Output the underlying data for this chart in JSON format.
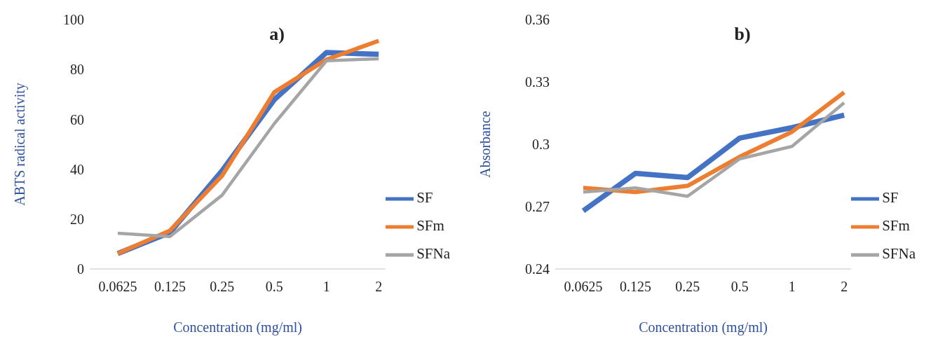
{
  "chart_data": [
    {
      "type": "line",
      "title": "a)",
      "xlabel": "Concentration (mg/ml)",
      "ylabel": "ABTS radical activity",
      "categories": [
        "0.0625",
        "0.125",
        "0.25",
        "0.5",
        "1",
        "2"
      ],
      "ylim": [
        0,
        100
      ],
      "yticks": [
        0,
        20,
        40,
        60,
        80,
        100
      ],
      "legend": "bottom right",
      "marker": "none",
      "series": [
        {
          "name": "SF",
          "color": "#4472c4",
          "values": [
            6.2,
            14.6,
            39.4,
            67.9,
            86.8,
            86.1
          ]
        },
        {
          "name": "SFm",
          "color": "#ed7d31",
          "values": [
            6.2,
            15.4,
            37.4,
            70.9,
            84,
            91.5
          ]
        },
        {
          "name": "SFNa",
          "color": "#a5a5a5",
          "values": [
            14.3,
            13,
            29.6,
            58.3,
            83.5,
            84.3
          ]
        }
      ]
    },
    {
      "type": "line",
      "title": "b)",
      "xlabel": "Concentration (mg/ml)",
      "ylabel": "Absorbance",
      "categories": [
        "0.0625",
        "0.125",
        "0.25",
        "0.5",
        "1",
        "2"
      ],
      "ylim": [
        0.24,
        0.36
      ],
      "yticks": [
        0.24,
        0.27,
        0.3,
        0.33,
        0.36
      ],
      "legend": "bottom right",
      "marker": "none",
      "series": [
        {
          "name": "SF",
          "color": "#4472c4",
          "values": [
            0.268,
            0.286,
            0.284,
            0.303,
            0.308,
            0.314
          ]
        },
        {
          "name": "SFm",
          "color": "#ed7d31",
          "values": [
            0.279,
            0.277,
            0.28,
            0.294,
            0.306,
            0.325
          ]
        },
        {
          "name": "SFNa",
          "color": "#a5a5a5",
          "values": [
            0.277,
            0.279,
            0.275,
            0.293,
            0.299,
            0.32
          ]
        }
      ]
    }
  ]
}
